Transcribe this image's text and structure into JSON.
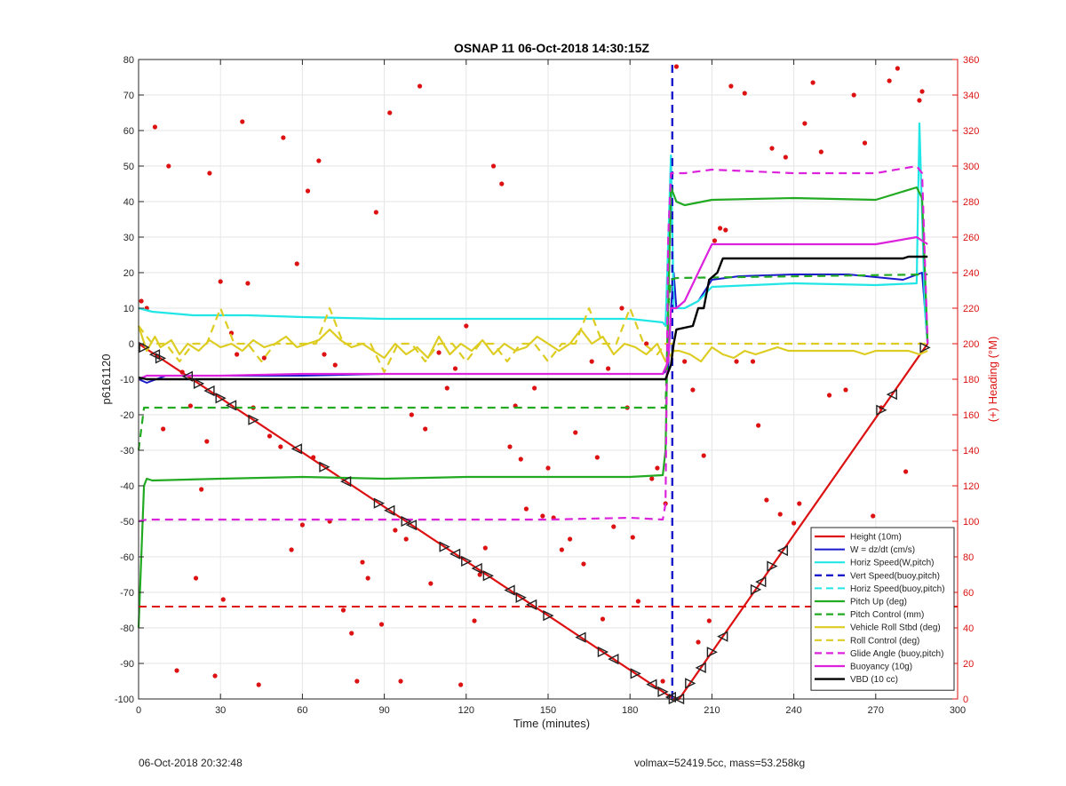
{
  "chart_data": {
    "type": "line",
    "title": "OSNAP 11 06-Oct-2018 14:30:15Z",
    "xlabel": "Time (minutes)",
    "ylabel": "p6161120",
    "y2label": "(+) Heading (°M)",
    "xlim": [
      0,
      300
    ],
    "ylim": [
      -100,
      80
    ],
    "y2lim": [
      0,
      360
    ],
    "xticks": [
      0,
      30,
      60,
      90,
      120,
      150,
      180,
      210,
      240,
      270,
      300
    ],
    "yticks": [
      -100,
      -90,
      -80,
      -70,
      -60,
      -50,
      -40,
      -30,
      -20,
      -10,
      0,
      10,
      20,
      30,
      40,
      50,
      60,
      70,
      80
    ],
    "y2ticks": [
      0,
      20,
      40,
      60,
      80,
      100,
      120,
      140,
      160,
      180,
      200,
      220,
      240,
      260,
      280,
      300,
      320,
      340,
      360
    ],
    "grid": true,
    "legend_position": "bottom-right",
    "series": [
      {
        "name": "Height (10m)",
        "color": "#dd1111",
        "dash": "solid",
        "width": 2.2,
        "x": [
          0,
          196,
          198,
          289
        ],
        "y": [
          0,
          -100,
          -100,
          0
        ]
      },
      {
        "name": "W = dz/dt (cm/s)",
        "color": "#1a1acc",
        "dash": "solid",
        "width": 2,
        "x": [
          0,
          3,
          10,
          30,
          60,
          90,
          120,
          150,
          180,
          192,
          194,
          195,
          196,
          197,
          200,
          205,
          210,
          220,
          240,
          260,
          280,
          287,
          289
        ],
        "y": [
          -10,
          -11,
          -9,
          -9,
          -9,
          -8.5,
          -8.5,
          -8.5,
          -8.5,
          -8.5,
          -7,
          10,
          20,
          10,
          10,
          12,
          18,
          19,
          19.5,
          19.5,
          18,
          20,
          0
        ]
      },
      {
        "name": "Horiz Speed(W,pitch)",
        "color": "#22e6e6",
        "dash": "solid",
        "width": 2.2,
        "x": [
          0,
          5,
          20,
          40,
          60,
          90,
          120,
          150,
          180,
          192,
          193,
          195,
          196,
          197,
          200,
          205,
          210,
          240,
          270,
          285,
          286,
          288,
          289
        ],
        "y": [
          10,
          9,
          8,
          8,
          7.5,
          7,
          7,
          7,
          7,
          6,
          5,
          53,
          10,
          10,
          10,
          12,
          16,
          17,
          16.5,
          17,
          62,
          10,
          0
        ]
      },
      {
        "name": "Vert Speed(buoy,pitch)",
        "color": "#1a1acc",
        "dash": "dash",
        "width": 2.4,
        "x": [
          195.5,
          195.5
        ],
        "y": [
          -100,
          80
        ]
      },
      {
        "name": "Horiz Speed(buoy,pitch)",
        "color": "#22e6e6",
        "dash": "dash",
        "width": 2,
        "x": [],
        "y": []
      },
      {
        "name": "Pitch Up (deg)",
        "color": "#22aa22",
        "dash": "solid",
        "width": 2.2,
        "x": [
          0,
          2,
          3,
          5,
          30,
          60,
          90,
          120,
          150,
          180,
          192,
          193,
          194,
          195,
          197,
          200,
          210,
          240,
          270,
          285,
          287,
          289
        ],
        "y": [
          -80,
          -40,
          -38,
          -38.5,
          -38,
          -37.5,
          -38,
          -37.5,
          -37.5,
          -37.5,
          -37,
          -30,
          10,
          44,
          40,
          39,
          40.5,
          41,
          40.5,
          44,
          41,
          0
        ]
      },
      {
        "name": "Pitch Control (mm)",
        "color": "#22aa22",
        "dash": "dash",
        "width": 2.2,
        "x": [
          0,
          2,
          3,
          192,
          193,
          194,
          195,
          197,
          289
        ],
        "y": [
          -30,
          -18,
          -18,
          -18,
          -18,
          10,
          18,
          18.5,
          19.5
        ]
      },
      {
        "name": "Vehicle Roll Stbd (deg)",
        "color": "#ddcc22",
        "dash": "solid",
        "width": 2.2,
        "x": [
          0,
          3,
          6,
          8,
          12,
          15,
          18,
          22,
          26,
          30,
          34,
          38,
          42,
          46,
          50,
          54,
          58,
          62,
          66,
          70,
          74,
          78,
          82,
          86,
          90,
          94,
          98,
          102,
          106,
          110,
          114,
          118,
          122,
          126,
          130,
          134,
          138,
          142,
          146,
          150,
          154,
          158,
          162,
          166,
          170,
          174,
          178,
          182,
          186,
          190,
          193,
          196,
          198,
          202,
          206,
          210,
          214,
          218,
          222,
          226,
          230,
          234,
          238,
          242,
          246,
          250,
          254,
          258,
          262,
          266,
          270,
          274,
          278,
          282,
          286,
          289
        ],
        "y": [
          5,
          -2,
          2,
          -1,
          1,
          -3,
          0,
          -2,
          1,
          -1,
          0,
          -2,
          1,
          -1,
          0,
          2,
          -1,
          0,
          1,
          4,
          1,
          -1,
          0,
          -2,
          -4,
          0,
          -3,
          -1,
          -4,
          2,
          -3,
          0,
          -2,
          1,
          -3,
          0,
          -2,
          -1,
          2,
          0,
          -2,
          0,
          4,
          0,
          2,
          -3,
          0,
          -1,
          -3,
          0,
          -5,
          -2,
          -2,
          -3,
          -5,
          -1,
          -3,
          -4,
          -2,
          -3,
          -2,
          -1,
          -2,
          -2,
          -2,
          -2,
          -2,
          -2,
          -2,
          -3,
          -2,
          -2,
          -2,
          -2,
          -3,
          -2
        ]
      },
      {
        "name": "Roll Control (deg)",
        "color": "#ddcc22",
        "dash": "dash",
        "width": 2.2,
        "x": [
          0,
          5,
          10,
          15,
          20,
          25,
          30,
          35,
          40,
          45,
          50,
          55,
          60,
          65,
          70,
          75,
          80,
          85,
          90,
          95,
          100,
          105,
          110,
          115,
          120,
          125,
          130,
          135,
          140,
          145,
          150,
          155,
          160,
          165,
          170,
          175,
          180,
          185,
          190,
          193,
          196,
          200,
          240,
          270,
          280,
          285,
          289
        ],
        "y": [
          5,
          0,
          0,
          -5,
          0,
          0,
          10,
          0,
          0,
          -5,
          0,
          0,
          0,
          0,
          10,
          0,
          0,
          0,
          -8,
          0,
          0,
          -5,
          0,
          0,
          -5,
          0,
          0,
          -5,
          0,
          0,
          -5,
          0,
          0,
          10,
          0,
          0,
          10,
          0,
          -3,
          0,
          0,
          0,
          0,
          0,
          0,
          0,
          0
        ]
      },
      {
        "name": "Glide Angle (buoy,pitch)",
        "color": "#dd22dd",
        "dash": "dash",
        "width": 2.2,
        "x": [
          0,
          3,
          30,
          60,
          90,
          120,
          150,
          180,
          192,
          193,
          194,
          195,
          197,
          200,
          210,
          240,
          270,
          285,
          287,
          289
        ],
        "y": [
          -50,
          -49.5,
          -49.5,
          -49.5,
          -49.5,
          -49.5,
          -49.5,
          -49,
          -49.5,
          -45,
          30,
          48,
          48,
          48,
          49,
          48,
          48,
          50,
          48,
          0
        ]
      },
      {
        "name": "Buoyancy (10g)",
        "color": "#dd22dd",
        "dash": "solid",
        "width": 2.2,
        "x": [
          0,
          3,
          30,
          60,
          90,
          120,
          150,
          180,
          192,
          194,
          195,
          197,
          200,
          205,
          210,
          240,
          270,
          285,
          289
        ],
        "y": [
          -10,
          -9,
          -9,
          -8.5,
          -8.5,
          -8.5,
          -8.5,
          -8.5,
          -8.5,
          -5,
          10,
          10,
          12,
          20,
          28,
          28,
          28,
          30,
          28
        ]
      },
      {
        "name": "VBD (10 cc)",
        "color": "#000000",
        "dash": "solid",
        "width": 2.4,
        "x": [
          0,
          3,
          30,
          60,
          90,
          120,
          150,
          180,
          193,
          194,
          195,
          196,
          197,
          203,
          205,
          207,
          209,
          212,
          214,
          240,
          270,
          280,
          282,
          289
        ],
        "y": [
          -9.5,
          -10,
          -10,
          -10,
          -10,
          -10,
          -10,
          -10,
          -10,
          -8,
          -6,
          0,
          4,
          5,
          10,
          10,
          18,
          20,
          24,
          24,
          24,
          24,
          24.5,
          24.5
        ]
      },
      {
        "name": "",
        "color": "#dd1111",
        "dash": "dash",
        "width": 2,
        "x": [
          0,
          300
        ],
        "y": [
          -74,
          -74
        ],
        "in_legend": false
      }
    ],
    "heading_points": {
      "color": "#dd1111",
      "axis": "right",
      "t": [
        1,
        3,
        6,
        9,
        11,
        14,
        16,
        19,
        21,
        23,
        25,
        26,
        28,
        30,
        31,
        34,
        36,
        38,
        40,
        42,
        44,
        46,
        48,
        52,
        53,
        56,
        58,
        60,
        62,
        64,
        66,
        68,
        70,
        72,
        75,
        78,
        80,
        82,
        84,
        87,
        89,
        92,
        94,
        96,
        98,
        100,
        103,
        105,
        107,
        110,
        113,
        116,
        118,
        120,
        123,
        125,
        127,
        130,
        133,
        136,
        138,
        140,
        142,
        145,
        148,
        150,
        152,
        155,
        158,
        160,
        163,
        166,
        168,
        170,
        172,
        174,
        177,
        179,
        181,
        183,
        186,
        188,
        190,
        192,
        193,
        197,
        200,
        203,
        205,
        207,
        209,
        211,
        213,
        215,
        217,
        219,
        222,
        225,
        227,
        230,
        232,
        235,
        237,
        240,
        242,
        244,
        247,
        250,
        253,
        256,
        259,
        262,
        266,
        269,
        272,
        275,
        278,
        281,
        284,
        286,
        287
      ],
      "heading": [
        224,
        220,
        322,
        152,
        300,
        16,
        184,
        165,
        68,
        118,
        145,
        296,
        13,
        235,
        56,
        206,
        194,
        325,
        234,
        164,
        8,
        192,
        148,
        142,
        316,
        84,
        245,
        98,
        286,
        136,
        303,
        194,
        100,
        188,
        50,
        37,
        10,
        77,
        68,
        274,
        42,
        330,
        95,
        10,
        90,
        160,
        345,
        152,
        65,
        195,
        175,
        186,
        8,
        210,
        44,
        70,
        85,
        300,
        290,
        142,
        165,
        135,
        107,
        175,
        103,
        130,
        102,
        84,
        90,
        150,
        76,
        190,
        136,
        45,
        186,
        97,
        220,
        164,
        91,
        55,
        200,
        124,
        130,
        10,
        110,
        356,
        190,
        174,
        32,
        137,
        44,
        258,
        265,
        264,
        345,
        190,
        341,
        190,
        154,
        112,
        310,
        104,
        305,
        99,
        110,
        324,
        347,
        308,
        171,
        33,
        174,
        340,
        313,
        103,
        164,
        348,
        355,
        128,
        95,
        337,
        342
      ],
      "note": ""
    },
    "profile_markers": {
      "color": "#222222",
      "t": [
        2,
        6,
        8,
        18,
        22,
        26,
        30,
        34,
        42,
        58,
        68,
        76,
        88,
        92,
        98,
        100,
        112,
        116,
        120,
        124,
        128,
        136,
        140,
        144,
        150,
        162,
        170,
        174,
        182,
        188,
        192,
        195,
        196,
        198,
        202,
        206,
        210,
        214,
        226,
        228,
        232,
        236,
        272,
        276,
        288
      ]
    }
  },
  "footer": {
    "left": "06-Oct-2018 20:32:48",
    "right": "volmax=52419.5cc, mass=53.258kg"
  }
}
